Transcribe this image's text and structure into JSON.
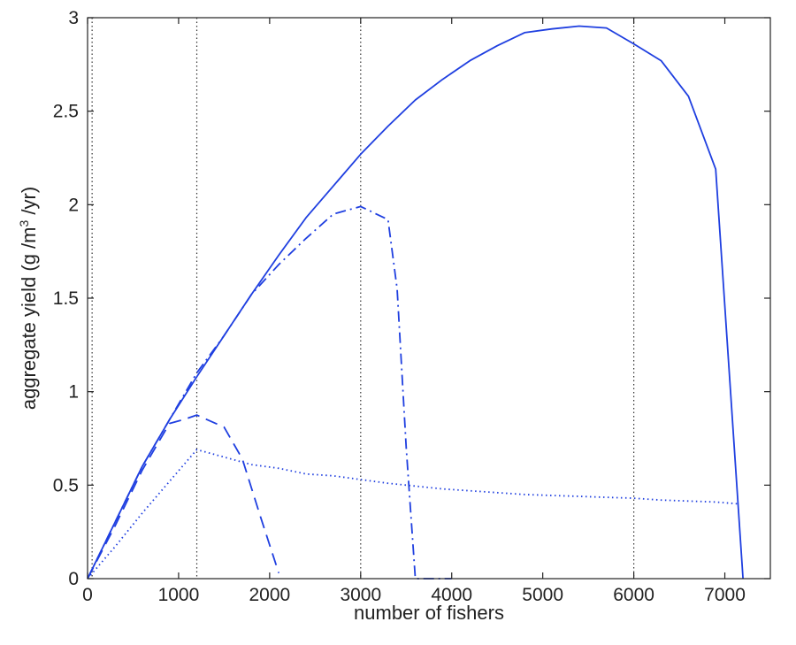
{
  "chart_data": {
    "type": "line",
    "xlabel": "number of fishers",
    "ylabel": {
      "pre": "aggregate yield (g /m",
      "sup": "3",
      "post": " /yr)"
    },
    "xlim": [
      0,
      7500
    ],
    "ylim": [
      0,
      3
    ],
    "xticks": [
      0,
      1000,
      2000,
      3000,
      4000,
      5000,
      6000,
      7000
    ],
    "yticks": [
      0,
      0.5,
      1,
      1.5,
      2,
      2.5,
      3
    ],
    "ytick_labels": [
      "0",
      "0.5",
      "1",
      "1.5",
      "2",
      "2.5",
      "3"
    ],
    "vlines": [
      50,
      1200,
      3000,
      6000
    ],
    "grid": false,
    "series": [
      {
        "style": "solid",
        "color": "#1f3fe0",
        "points": [
          [
            0,
            0
          ],
          [
            300,
            0.3
          ],
          [
            600,
            0.6
          ],
          [
            900,
            0.85
          ],
          [
            1200,
            1.08
          ],
          [
            1500,
            1.3
          ],
          [
            1800,
            1.52
          ],
          [
            2100,
            1.73
          ],
          [
            2400,
            1.93
          ],
          [
            2700,
            2.1
          ],
          [
            3000,
            2.27
          ],
          [
            3300,
            2.42
          ],
          [
            3600,
            2.56
          ],
          [
            3900,
            2.67
          ],
          [
            4200,
            2.77
          ],
          [
            4500,
            2.85
          ],
          [
            4800,
            2.92
          ],
          [
            5100,
            2.94
          ],
          [
            5400,
            2.955
          ],
          [
            5700,
            2.945
          ],
          [
            6000,
            2.86
          ],
          [
            6300,
            2.77
          ],
          [
            6600,
            2.58
          ],
          [
            6900,
            2.19
          ],
          [
            7200,
            0
          ]
        ]
      },
      {
        "style": "dashdot",
        "color": "#1f3fe0",
        "points": [
          [
            0,
            0
          ],
          [
            300,
            0.3
          ],
          [
            600,
            0.6
          ],
          [
            900,
            0.85
          ],
          [
            1200,
            1.1
          ],
          [
            1500,
            1.3
          ],
          [
            1800,
            1.52
          ],
          [
            2100,
            1.68
          ],
          [
            2400,
            1.82
          ],
          [
            2700,
            1.95
          ],
          [
            3000,
            1.99
          ],
          [
            3300,
            1.92
          ],
          [
            3400,
            1.55
          ],
          [
            3500,
            0.7
          ],
          [
            3600,
            0
          ],
          [
            4000,
            0
          ]
        ]
      },
      {
        "style": "dashed",
        "color": "#1f3fe0",
        "points": [
          [
            0,
            0
          ],
          [
            300,
            0.28
          ],
          [
            600,
            0.58
          ],
          [
            900,
            0.83
          ],
          [
            1050,
            0.85
          ],
          [
            1200,
            0.875
          ],
          [
            1500,
            0.81
          ],
          [
            1700,
            0.64
          ],
          [
            1900,
            0.33
          ],
          [
            2100,
            0.03
          ]
        ]
      },
      {
        "style": "dotted",
        "color": "#1f3fe0",
        "points": [
          [
            0,
            0
          ],
          [
            300,
            0.17
          ],
          [
            600,
            0.35
          ],
          [
            900,
            0.52
          ],
          [
            1200,
            0.69
          ],
          [
            1500,
            0.65
          ],
          [
            1800,
            0.61
          ],
          [
            2100,
            0.59
          ],
          [
            2400,
            0.56
          ],
          [
            2700,
            0.55
          ],
          [
            3000,
            0.53
          ],
          [
            3300,
            0.51
          ],
          [
            3600,
            0.495
          ],
          [
            3900,
            0.48
          ],
          [
            4200,
            0.47
          ],
          [
            4500,
            0.46
          ],
          [
            4800,
            0.45
          ],
          [
            5100,
            0.445
          ],
          [
            5400,
            0.44
          ],
          [
            5700,
            0.435
          ],
          [
            6000,
            0.43
          ],
          [
            6300,
            0.42
          ],
          [
            6600,
            0.415
          ],
          [
            6900,
            0.41
          ],
          [
            7150,
            0.4
          ]
        ]
      }
    ]
  }
}
